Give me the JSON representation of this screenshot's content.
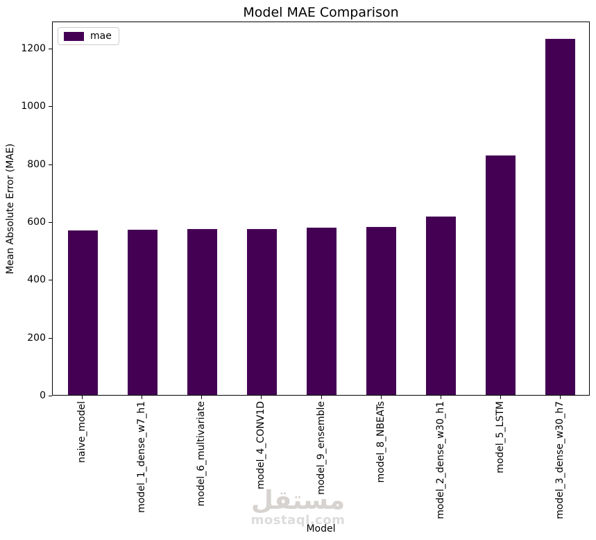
{
  "title": "Model MAE Comparison",
  "legend": {
    "items": [
      {
        "label": "mae",
        "color": "#440154"
      }
    ]
  },
  "watermark": {
    "logo_text": "مستقل",
    "domain": "mostaql.com"
  },
  "chart_data": {
    "type": "bar",
    "title": "Model MAE Comparison",
    "xlabel": "Model",
    "ylabel": "Mean Absolute Error (MAE)",
    "series_name": "mae",
    "bar_color": "#440154",
    "categories": [
      "naive_model",
      "model_1_dense_w7_h1",
      "model_6_multivariate",
      "model_4_CONV1D",
      "model_9_ensemble",
      "model_8_NBEATs",
      "model_2_dense_w30_h1",
      "model_5_LSTM",
      "model_3_dense_w30_h7"
    ],
    "values": [
      568,
      571,
      573,
      573,
      578,
      581,
      618,
      829,
      1232
    ],
    "yticks": [
      0,
      200,
      400,
      600,
      800,
      1000,
      1200
    ],
    "ylim": [
      0,
      1294
    ],
    "x_tick_rotation": 90,
    "grid": false,
    "legend_position": "upper left"
  }
}
